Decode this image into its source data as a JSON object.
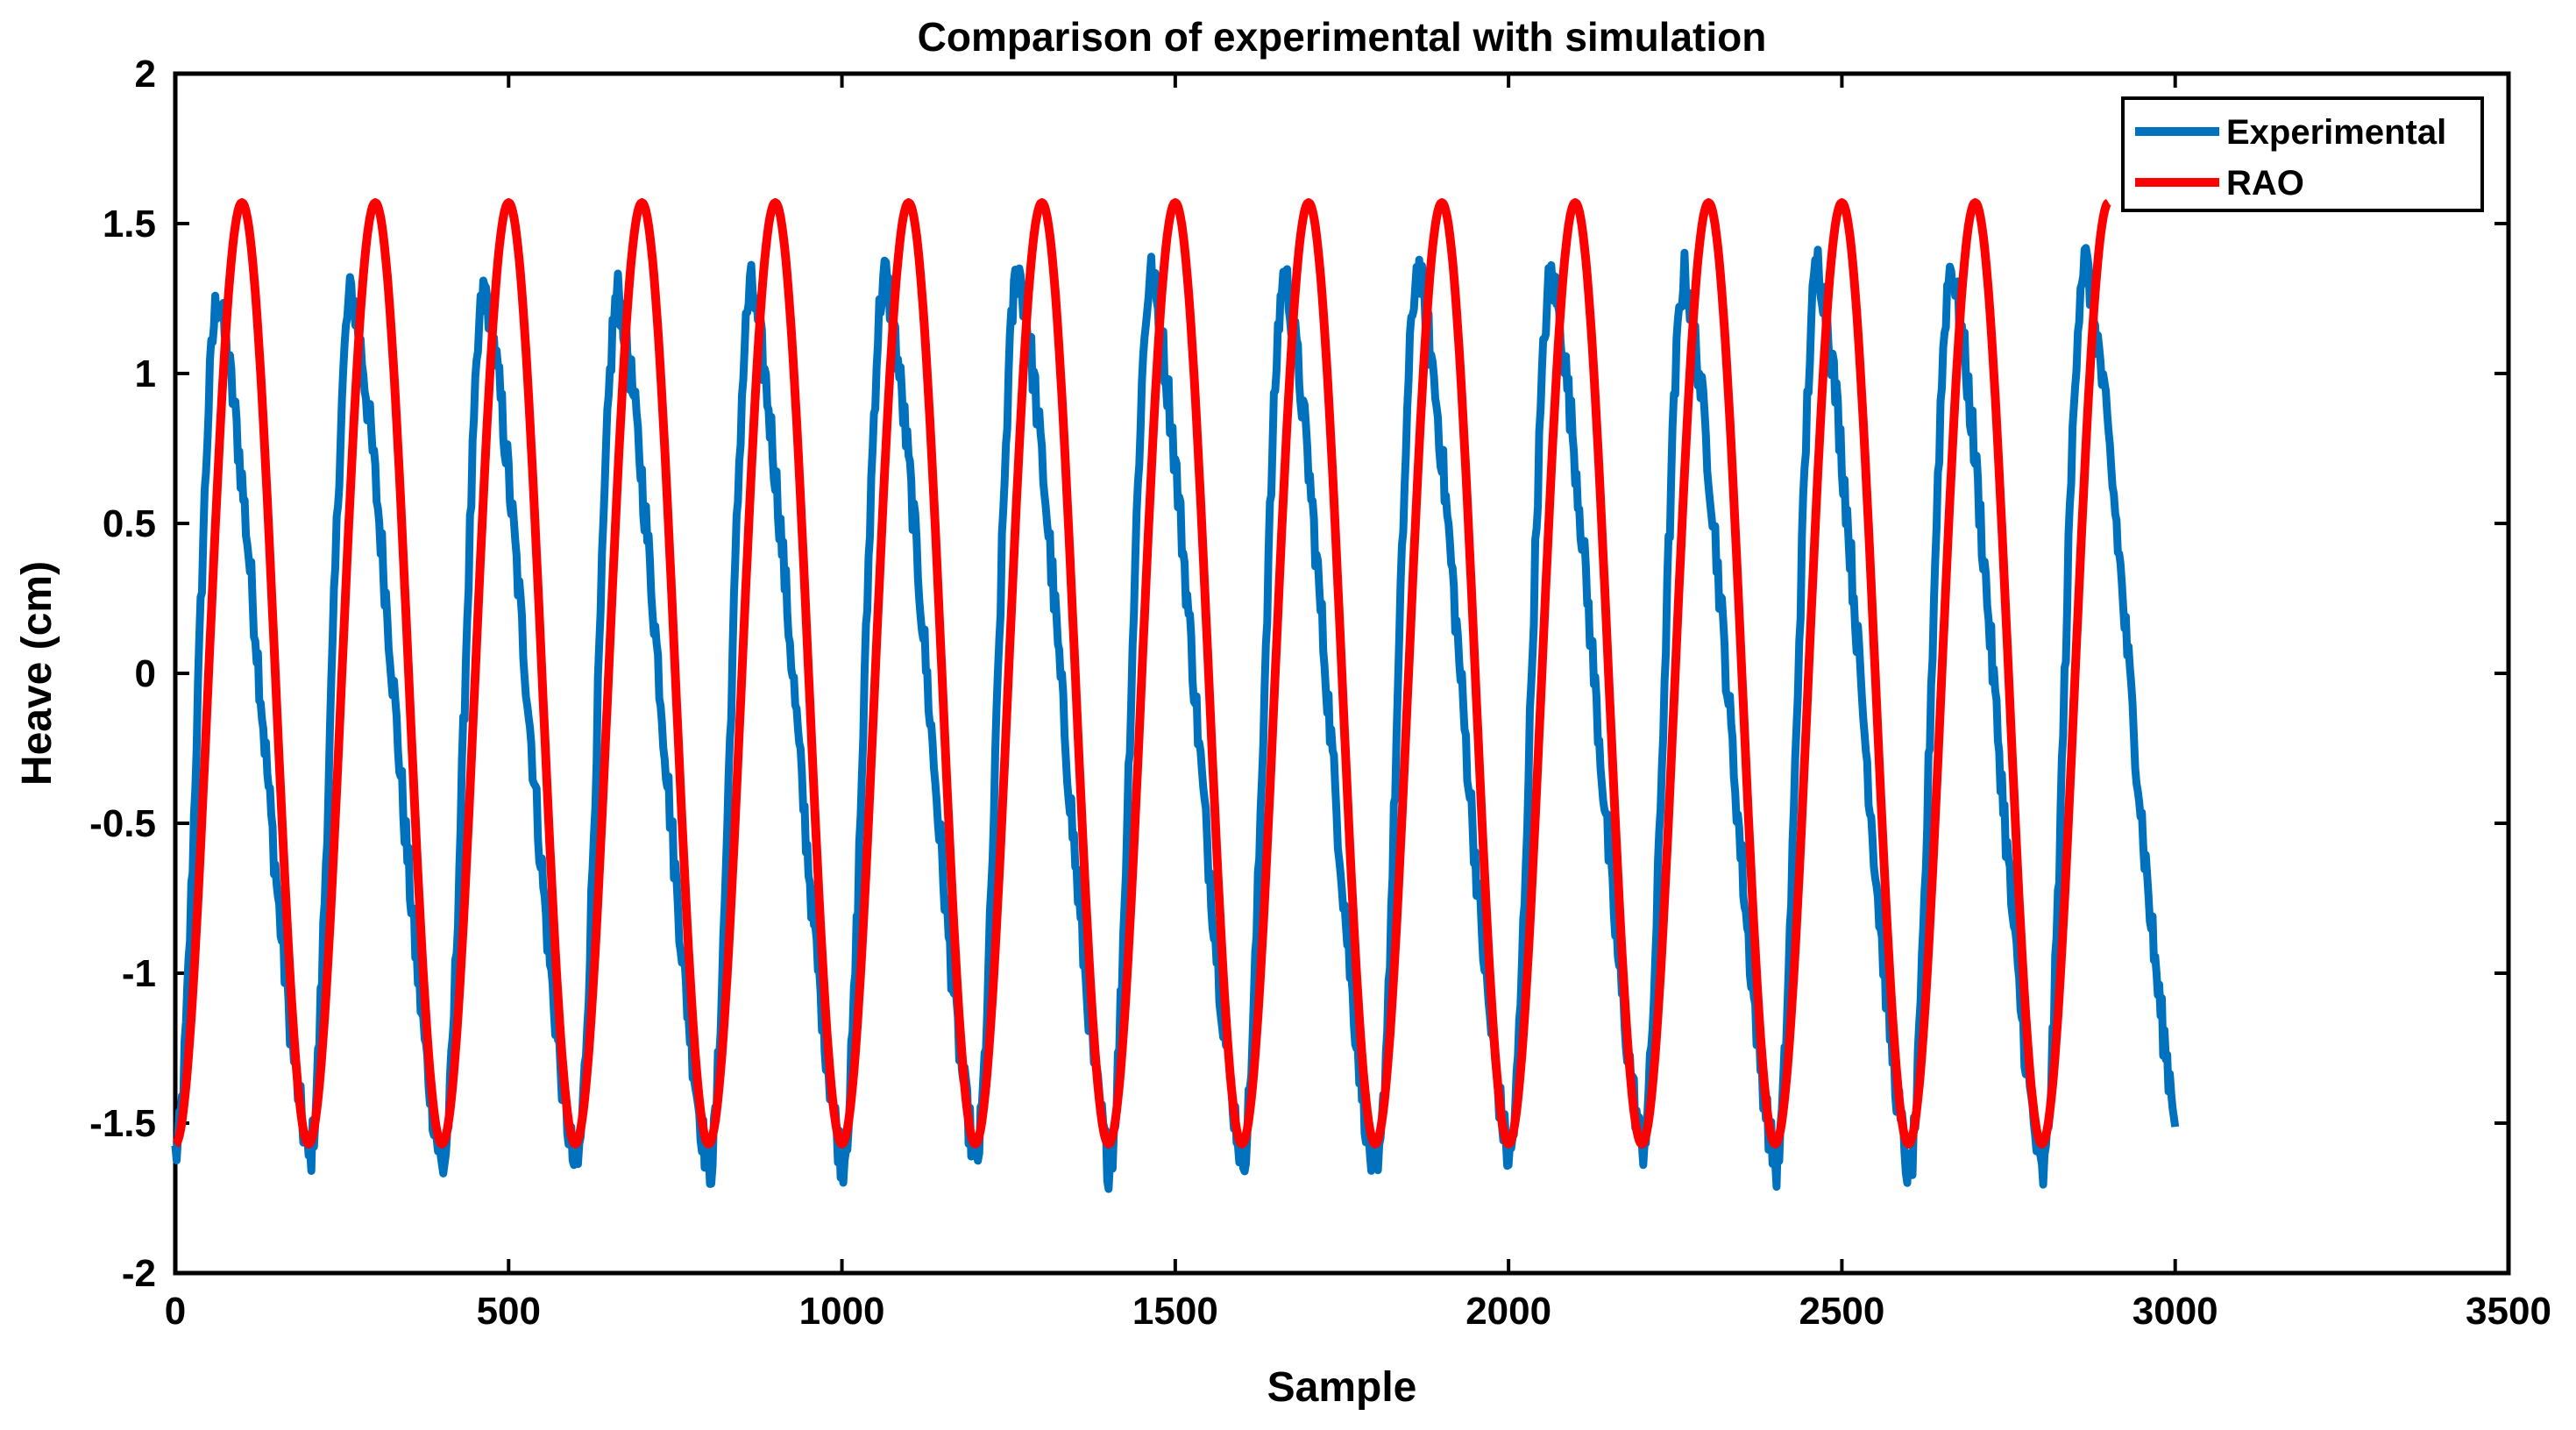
{
  "chart_data": {
    "type": "line",
    "title": "Comparison of experimental with simulation",
    "xlabel": "Sample",
    "ylabel": "Heave (cm)",
    "xlim": [
      0,
      3500
    ],
    "ylim": [
      -2,
      2
    ],
    "xticks": [
      0,
      500,
      1000,
      1500,
      2000,
      2500,
      3000,
      3500
    ],
    "yticks": [
      -2,
      -1.5,
      -1,
      -0.5,
      0,
      0.5,
      1,
      1.5,
      2
    ],
    "xtick_labels": [
      "0",
      "500",
      "1000",
      "1500",
      "2000",
      "2500",
      "3000",
      "3500"
    ],
    "ytick_labels": [
      "-2",
      "-1.5",
      "-1",
      "-0.5",
      "0",
      "0.5",
      "1",
      "1.5",
      "2"
    ],
    "legend_position": "top-right",
    "series": [
      {
        "name": "Experimental",
        "color": "#0072BD",
        "x_start": 0,
        "x_end": 3000,
        "period": 200,
        "trough_x": [
          0,
          200,
          400,
          600,
          800,
          1000,
          1200,
          1400,
          1600,
          1800,
          2000,
          2200,
          2400,
          2600,
          2800
        ],
        "trough_values": [
          -1.6,
          -1.62,
          -1.65,
          -1.66,
          -1.66,
          -1.63,
          -1.63,
          -1.64,
          -1.62,
          -1.7,
          -1.62,
          -1.58,
          -1.65,
          -1.67,
          -1.68
        ],
        "peak_x": [
          65,
          265,
          465,
          665,
          865,
          1065,
          1265,
          1465,
          1665,
          1865,
          2065,
          2265,
          2465,
          2665,
          2865
        ],
        "peak_values": [
          1.25,
          1.27,
          1.28,
          1.27,
          1.29,
          1.33,
          1.35,
          1.33,
          1.33,
          1.35,
          1.33,
          1.33,
          1.37,
          1.36,
          1.38
        ],
        "end_value": -1.46
      },
      {
        "name": "RAO",
        "color": "#FF0000",
        "x_start": 0,
        "x_end": 2900,
        "period": 200,
        "amplitude": 1.57,
        "phase_note": "trough at x=0, peaks at x=100,300,...,2700"
      }
    ]
  }
}
